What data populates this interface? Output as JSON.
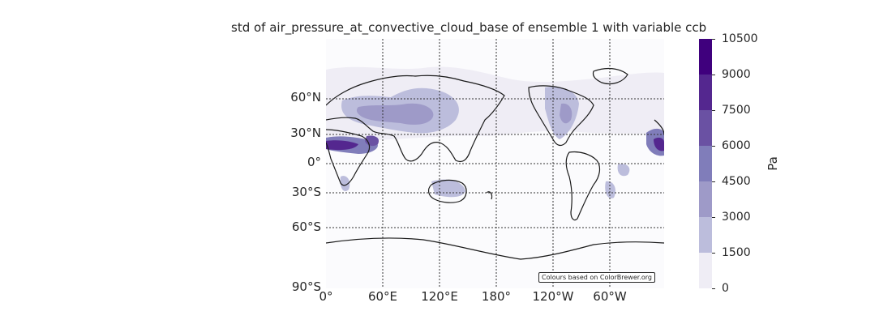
{
  "map": {
    "title": "std of air_pressure_at_convective_cloud_base of ensemble 1 with variable ccb",
    "credit": "Colours based on ColorBrewer.org",
    "lat_labels": [
      "60°N",
      "30°N",
      "0°",
      "30°S",
      "60°S",
      "90°S"
    ],
    "lon_labels": [
      "0°",
      "60°E",
      "120°E",
      "180°",
      "120°W",
      "60°W"
    ]
  },
  "colorbar": {
    "unit": "Pa",
    "ticks": [
      "0",
      "1500",
      "3000",
      "4500",
      "6000",
      "7500",
      "9000",
      "10500"
    ],
    "colors": [
      "#fcfbfd",
      "#efedf5",
      "#bcbddc",
      "#9e9ac8",
      "#807dba",
      "#6a51a3",
      "#54278f",
      "#3f007d"
    ]
  }
}
